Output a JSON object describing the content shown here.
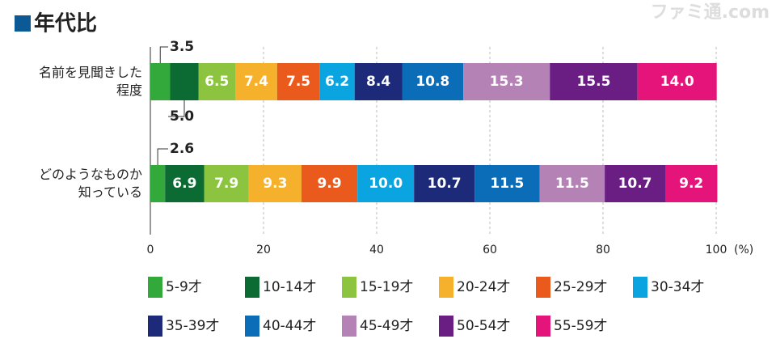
{
  "chart_data": {
    "type": "stacked-bar-horizontal",
    "title": "年代比",
    "watermark": "ファミ通.com",
    "categories": [
      "名前を見聞きした\n程度",
      "どのようなものか\n知っている"
    ],
    "series": [
      {
        "name": "5-9才",
        "color": "#33a93c",
        "values": [
          3.5,
          2.6
        ],
        "value_labels": [
          "3.5",
          "2.6"
        ]
      },
      {
        "name": "10-14才",
        "color": "#0b6b32",
        "values": [
          5.0,
          6.9
        ],
        "value_labels": [
          "5.0",
          "6.9"
        ]
      },
      {
        "name": "15-19才",
        "color": "#8cc43f",
        "values": [
          6.5,
          7.9
        ],
        "value_labels": [
          "6.5",
          "7.9"
        ]
      },
      {
        "name": "20-24才",
        "color": "#f6b12c",
        "values": [
          7.4,
          9.3
        ],
        "value_labels": [
          "7.4",
          "9.3"
        ]
      },
      {
        "name": "25-29才",
        "color": "#e95a1c",
        "values": [
          7.5,
          9.9
        ],
        "value_labels": [
          "7.5",
          "9.9"
        ]
      },
      {
        "name": "30-34才",
        "color": "#0aa5e0",
        "values": [
          6.2,
          10.0
        ],
        "value_labels": [
          "6.2",
          "10.0"
        ]
      },
      {
        "name": "35-39才",
        "color": "#1d2a7a",
        "values": [
          8.4,
          10.7
        ],
        "value_labels": [
          "8.4",
          "10.7"
        ]
      },
      {
        "name": "40-44才",
        "color": "#0b6cb8",
        "values": [
          10.8,
          11.5
        ],
        "value_labels": [
          "10.8",
          "11.5"
        ]
      },
      {
        "name": "45-49才",
        "color": "#b482b5",
        "values": [
          15.3,
          11.5
        ],
        "value_labels": [
          "15.3",
          "11.5"
        ]
      },
      {
        "name": "50-54才",
        "color": "#6a1e84",
        "values": [
          15.5,
          10.7
        ],
        "value_labels": [
          "15.5",
          "10.7"
        ]
      },
      {
        "name": "55-59才",
        "color": "#e4147a",
        "values": [
          14.0,
          9.2
        ],
        "value_labels": [
          "14.0",
          "9.2"
        ]
      }
    ],
    "xlim": [
      0,
      100
    ],
    "xticks": [
      0,
      20,
      40,
      60,
      80,
      100
    ],
    "x_unit": "(%)",
    "grid": true
  }
}
